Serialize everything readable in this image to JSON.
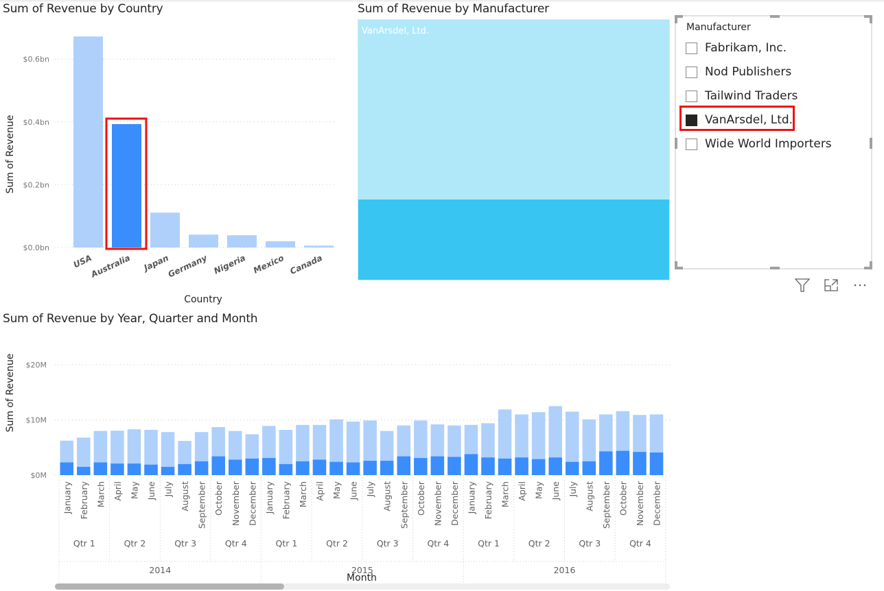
{
  "colors": {
    "bar_light": "#aed0fb",
    "bar_dark": "#3a8dfd",
    "treemap_light": "#b0e8fa",
    "treemap_dark": "#38c5f1",
    "highlight": "#ee1111",
    "text": "#252423"
  },
  "country_chart": {
    "title": "Sum of Revenue by Country"
  },
  "manufacturer_chart": {
    "title": "Sum of Revenue by Manufacturer",
    "tile_label": "VanArsdel, Ltd."
  },
  "slicer": {
    "header": "Manufacturer",
    "items": [
      {
        "label": "Fabrikam, Inc.",
        "checked": false
      },
      {
        "label": "Nod Publishers",
        "checked": false
      },
      {
        "label": "Tailwind Traders",
        "checked": false
      },
      {
        "label": "VanArsdel, Ltd.",
        "checked": true
      },
      {
        "label": "Wide World Importers",
        "checked": false
      }
    ],
    "icons": [
      "filter-icon",
      "focus-mode-icon",
      "more-options-icon"
    ]
  },
  "time_chart": {
    "title": "Sum of Revenue by Year, Quarter and Month",
    "scroll_position_fraction": 0.0,
    "scroll_visible_fraction": 0.37
  },
  "chart_data": [
    {
      "type": "bar",
      "title": "Sum of Revenue by Country",
      "xlabel": "Country",
      "ylabel": "Sum of Revenue",
      "categories": [
        "USA",
        "Australia",
        "Japan",
        "Germany",
        "Nigeria",
        "Mexico",
        "Canada"
      ],
      "values": [
        0.672,
        0.393,
        0.111,
        0.041,
        0.039,
        0.02,
        0.006
      ],
      "highlighted": [
        "Australia"
      ],
      "unit": "$bn",
      "yticks": [
        "$0.0bn",
        "$0.2bn",
        "$0.4bn",
        "$0.6bn"
      ],
      "ytick_values": [
        0,
        0.2,
        0.4,
        0.6
      ],
      "ylim": [
        0,
        0.7
      ],
      "grid": true
    },
    {
      "type": "treemap",
      "title": "Sum of Revenue by Manufacturer",
      "categories": [
        "VanArsdel, Ltd."
      ],
      "highlighted_fraction": 0.31,
      "note": "Only VanArsdel, Ltd. tile visible; lower portion highlighted by Australia cross-filter"
    },
    {
      "type": "bar",
      "stacked_highlight": true,
      "title": "Sum of Revenue by Year, Quarter and Month",
      "xlabel": "Month",
      "ylabel": "Sum of Revenue",
      "unit": "$M",
      "yticks": [
        "$0M",
        "$10M",
        "$20M"
      ],
      "ytick_values": [
        0,
        10,
        20
      ],
      "ylim": [
        0,
        20
      ],
      "grid": true,
      "years": [
        "2014",
        "2015",
        "2016"
      ],
      "quarters": [
        "Qtr 1",
        "Qtr 2",
        "Qtr 3",
        "Qtr 4"
      ],
      "months": [
        "January",
        "February",
        "March",
        "April",
        "May",
        "June",
        "July",
        "August",
        "September",
        "October",
        "November",
        "December"
      ],
      "series": [
        {
          "name": "Total",
          "values": [
            6.25,
            6.8,
            8.0,
            8.05,
            8.3,
            8.2,
            7.8,
            6.2,
            7.8,
            8.7,
            8.0,
            7.4,
            8.9,
            8.2,
            9.1,
            9.1,
            10.1,
            9.7,
            9.9,
            8.0,
            9.0,
            9.9,
            9.2,
            9.0,
            9.1,
            9.4,
            11.9,
            11.0,
            11.4,
            12.5,
            11.5,
            10.1,
            11.0,
            11.6,
            10.9,
            11.0
          ]
        },
        {
          "name": "Australia (highlighted)",
          "values": [
            2.3,
            1.5,
            2.3,
            2.1,
            2.1,
            1.9,
            1.5,
            2.0,
            2.5,
            3.4,
            2.8,
            3.0,
            3.1,
            2.0,
            2.5,
            2.8,
            2.4,
            2.3,
            2.6,
            2.6,
            3.4,
            3.1,
            3.4,
            3.3,
            3.8,
            3.2,
            3.0,
            3.2,
            2.9,
            3.2,
            2.4,
            2.5,
            4.3,
            4.4,
            4.2,
            4.1
          ]
        }
      ]
    }
  ]
}
